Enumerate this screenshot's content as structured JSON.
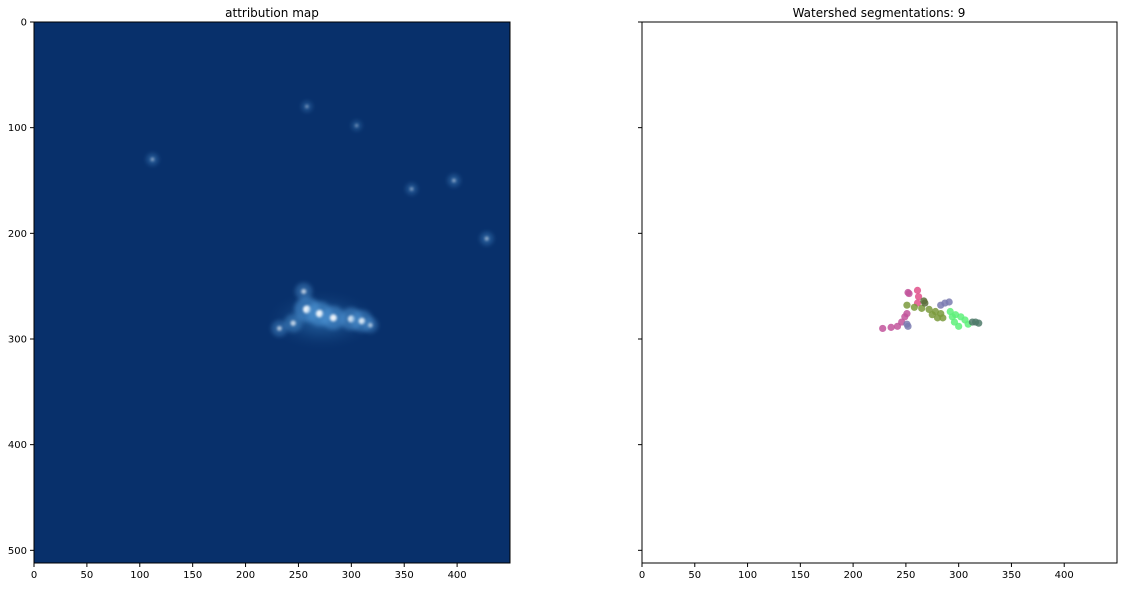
{
  "chart_data": [
    {
      "type": "heatmap",
      "title": "attribution map",
      "colormap": "Blues_r",
      "background_color": "#08306b",
      "highlight_color": "#f7fbff",
      "xlim": [
        0,
        450
      ],
      "ylim": [
        512,
        0
      ],
      "xticks": [
        0,
        50,
        100,
        150,
        200,
        250,
        300,
        350,
        400
      ],
      "yticks": [
        0,
        100,
        200,
        300,
        400,
        500
      ],
      "hotspots": [
        {
          "x": 258,
          "y": 272,
          "intensity": 1.0
        },
        {
          "x": 270,
          "y": 276,
          "intensity": 0.95
        },
        {
          "x": 283,
          "y": 280,
          "intensity": 0.9
        },
        {
          "x": 300,
          "y": 281,
          "intensity": 0.85
        },
        {
          "x": 310,
          "y": 283,
          "intensity": 0.8
        },
        {
          "x": 245,
          "y": 285,
          "intensity": 0.6
        },
        {
          "x": 255,
          "y": 255,
          "intensity": 0.55
        },
        {
          "x": 232,
          "y": 290,
          "intensity": 0.5
        },
        {
          "x": 318,
          "y": 287,
          "intensity": 0.45
        },
        {
          "x": 428,
          "y": 205,
          "intensity": 0.35
        },
        {
          "x": 397,
          "y": 150,
          "intensity": 0.3
        },
        {
          "x": 112,
          "y": 130,
          "intensity": 0.28
        },
        {
          "x": 357,
          "y": 158,
          "intensity": 0.25
        },
        {
          "x": 258,
          "y": 80,
          "intensity": 0.2
        },
        {
          "x": 305,
          "y": 98,
          "intensity": 0.18
        }
      ]
    },
    {
      "type": "scatter",
      "title": "Watershed segmentations: 9",
      "xlim": [
        0,
        450
      ],
      "ylim": [
        512,
        0
      ],
      "xticks": [
        0,
        50,
        100,
        150,
        200,
        250,
        300,
        350,
        400
      ],
      "yticks": [
        0,
        100,
        200,
        300,
        400,
        500
      ],
      "show_ytick_labels": false,
      "segments": [
        {
          "color": "#c2549b",
          "points": [
            [
              228,
              290
            ],
            [
              236,
              289
            ],
            [
              242,
              288
            ],
            [
              246,
              284
            ],
            [
              249,
              279
            ],
            [
              251,
              276
            ]
          ]
        },
        {
          "color": "#e0508a",
          "points": [
            [
              261,
              254
            ],
            [
              262,
              260
            ],
            [
              261,
              266
            ]
          ]
        },
        {
          "color": "#c2549b",
          "points": [
            [
              252,
              256
            ],
            [
              253,
              257
            ]
          ]
        },
        {
          "color": "#7a9a3c",
          "points": [
            [
              251,
              268
            ],
            [
              258,
              270
            ],
            [
              265,
              271
            ],
            [
              272,
              272
            ],
            [
              278,
              274
            ],
            [
              283,
              276
            ],
            [
              285,
              280
            ],
            [
              280,
              280
            ],
            [
              275,
              277
            ]
          ]
        },
        {
          "color": "#5ef07a",
          "points": [
            [
              292,
              274
            ],
            [
              297,
              277
            ],
            [
              302,
              279
            ],
            [
              306,
              282
            ],
            [
              309,
              286
            ],
            [
              300,
              288
            ],
            [
              296,
              284
            ],
            [
              294,
              279
            ]
          ]
        },
        {
          "color": "#4f7a6a",
          "points": [
            [
              313,
              284
            ],
            [
              316,
              284
            ],
            [
              319,
              285
            ]
          ]
        },
        {
          "color": "#7a7bb0",
          "points": [
            [
              283,
              268
            ],
            [
              287,
              266
            ],
            [
              291,
              265
            ]
          ]
        },
        {
          "color": "#7a7bb0",
          "points": [
            [
              251,
              286
            ],
            [
              252,
              288
            ]
          ]
        },
        {
          "color": "#5a6f3a",
          "points": [
            [
              267,
              264
            ],
            [
              268,
              266
            ]
          ]
        }
      ]
    }
  ]
}
